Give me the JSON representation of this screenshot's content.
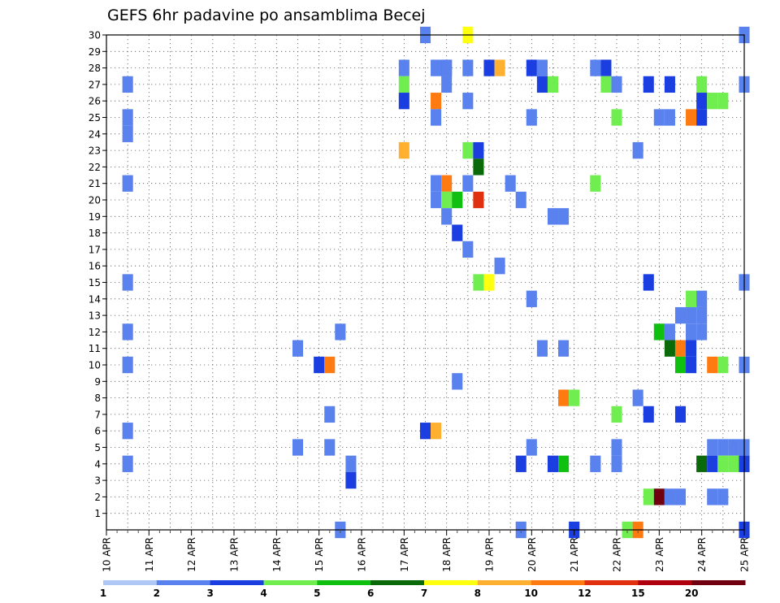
{
  "chart_data": {
    "type": "heatmap",
    "title": "GEFS 6hr padavine po ansamblima Becej",
    "xlabel": "",
    "ylabel": "",
    "x_ticks": [
      "10 APR",
      "11 APR",
      "12 APR",
      "13 APR",
      "14 APR",
      "15 APR",
      "16 APR",
      "17 APR",
      "18 APR",
      "19 APR",
      "20 APR",
      "21 APR",
      "22 APR",
      "23 APR",
      "24 APR",
      "25 APR"
    ],
    "y_ticks": [
      "1",
      "2",
      "3",
      "4",
      "5",
      "6",
      "7",
      "8",
      "9",
      "10",
      "11",
      "12",
      "13",
      "14",
      "15",
      "16",
      "17",
      "18",
      "19",
      "20",
      "21",
      "22",
      "23",
      "24",
      "25",
      "26",
      "27",
      "28",
      "29",
      "30"
    ],
    "y_range": [
      0,
      30
    ],
    "time_steps_per_day": 4,
    "time_steps": 61,
    "grid": "dotted",
    "colorbar": {
      "position": "bottom",
      "labels": [
        "1",
        "2",
        "3",
        "4",
        "5",
        "6",
        "7",
        "8",
        "10",
        "12",
        "15",
        "20"
      ],
      "colors": [
        "#b0c8f5",
        "#5a82ee",
        "#1a3ee0",
        "#70ee50",
        "#10c010",
        "#0a6a0a",
        "#ffff10",
        "#ffb030",
        "#ff7a10",
        "#e03010",
        "#b00010",
        "#700010"
      ]
    },
    "cells_comment_free": true,
    "cells": [
      [
        30,
        30,
        1
      ],
      [
        34,
        30,
        6
      ],
      [
        2,
        27,
        1
      ],
      [
        2,
        25,
        1
      ],
      [
        2,
        24,
        1
      ],
      [
        2,
        21,
        1
      ],
      [
        2,
        15,
        1
      ],
      [
        2,
        12,
        1
      ],
      [
        2,
        10,
        1
      ],
      [
        2,
        6,
        1
      ],
      [
        2,
        4,
        1
      ],
      [
        18,
        11,
        1
      ],
      [
        18,
        5,
        1
      ],
      [
        20,
        10,
        2
      ],
      [
        21,
        10,
        8
      ],
      [
        21,
        7,
        1
      ],
      [
        21,
        5,
        1
      ],
      [
        22,
        12,
        1
      ],
      [
        23,
        4,
        1
      ],
      [
        23,
        3,
        2
      ],
      [
        22,
        0,
        1
      ],
      [
        28,
        28,
        1
      ],
      [
        28,
        27,
        3
      ],
      [
        28,
        26,
        2
      ],
      [
        28,
        23,
        7
      ],
      [
        30,
        6,
        2
      ],
      [
        31,
        28,
        1
      ],
      [
        32,
        28,
        2
      ],
      [
        31,
        6,
        7
      ],
      [
        31,
        26,
        8
      ],
      [
        31,
        25,
        1
      ],
      [
        31,
        21,
        1
      ],
      [
        31,
        20,
        1
      ],
      [
        32,
        21,
        8
      ],
      [
        32,
        20,
        3
      ],
      [
        32,
        19,
        1
      ],
      [
        32,
        28,
        1
      ],
      [
        32,
        27,
        1
      ],
      [
        33,
        20,
        4
      ],
      [
        33,
        18,
        2
      ],
      [
        33,
        9,
        1
      ],
      [
        34,
        28,
        1
      ],
      [
        34,
        26,
        1
      ],
      [
        34,
        23,
        3
      ],
      [
        34,
        21,
        1
      ],
      [
        34,
        17,
        1
      ],
      [
        35,
        23,
        2
      ],
      [
        35,
        22,
        5
      ],
      [
        35,
        20,
        9
      ],
      [
        35,
        15,
        3
      ],
      [
        36,
        28,
        2
      ],
      [
        36,
        15,
        6
      ],
      [
        37,
        28,
        7
      ],
      [
        37,
        16,
        1
      ],
      [
        38,
        21,
        1
      ],
      [
        39,
        20,
        1
      ],
      [
        39,
        4,
        2
      ],
      [
        39,
        0,
        1
      ],
      [
        40,
        28,
        2
      ],
      [
        40,
        25,
        1
      ],
      [
        40,
        14,
        1
      ],
      [
        40,
        5,
        1
      ],
      [
        41,
        28,
        1
      ],
      [
        41,
        27,
        2
      ],
      [
        41,
        11,
        1
      ],
      [
        42,
        27,
        3
      ],
      [
        42,
        19,
        1
      ],
      [
        42,
        4,
        2
      ],
      [
        43,
        19,
        1
      ],
      [
        43,
        11,
        1
      ],
      [
        43,
        8,
        8
      ],
      [
        43,
        4,
        4
      ],
      [
        44,
        8,
        3
      ],
      [
        44,
        0,
        2
      ],
      [
        46,
        28,
        1
      ],
      [
        46,
        21,
        3
      ],
      [
        46,
        4,
        1
      ],
      [
        47,
        28,
        2
      ],
      [
        47,
        27,
        3
      ],
      [
        48,
        27,
        1
      ],
      [
        48,
        25,
        3
      ],
      [
        48,
        7,
        3
      ],
      [
        48,
        5,
        1
      ],
      [
        48,
        4,
        1
      ],
      [
        49,
        0,
        3
      ],
      [
        50,
        23,
        1
      ],
      [
        50,
        8,
        1
      ],
      [
        50,
        0,
        8
      ],
      [
        51,
        27,
        2
      ],
      [
        51,
        15,
        2
      ],
      [
        51,
        7,
        2
      ],
      [
        51,
        2,
        3
      ],
      [
        52,
        25,
        1
      ],
      [
        52,
        12,
        4
      ],
      [
        52,
        2,
        11
      ],
      [
        53,
        27,
        2
      ],
      [
        53,
        25,
        1
      ],
      [
        53,
        12,
        1
      ],
      [
        53,
        11,
        5
      ],
      [
        53,
        2,
        1
      ],
      [
        54,
        13,
        1
      ],
      [
        54,
        11,
        8
      ],
      [
        54,
        10,
        4
      ],
      [
        54,
        7,
        2
      ],
      [
        54,
        2,
        1
      ],
      [
        55,
        25,
        8
      ],
      [
        55,
        14,
        3
      ],
      [
        55,
        13,
        1
      ],
      [
        55,
        12,
        1
      ],
      [
        55,
        11,
        2
      ],
      [
        55,
        10,
        2
      ],
      [
        56,
        27,
        3
      ],
      [
        56,
        26,
        2
      ],
      [
        56,
        25,
        2
      ],
      [
        56,
        14,
        1
      ],
      [
        56,
        13,
        1
      ],
      [
        56,
        12,
        1
      ],
      [
        56,
        4,
        5
      ],
      [
        57,
        26,
        3
      ],
      [
        57,
        10,
        8
      ],
      [
        57,
        5,
        1
      ],
      [
        57,
        4,
        2
      ],
      [
        57,
        2,
        1
      ],
      [
        58,
        26,
        3
      ],
      [
        58,
        10,
        3
      ],
      [
        58,
        5,
        1
      ],
      [
        58,
        4,
        3
      ],
      [
        58,
        2,
        1
      ],
      [
        59,
        5,
        1
      ],
      [
        59,
        4,
        3
      ],
      [
        60,
        30,
        1
      ],
      [
        60,
        27,
        1
      ],
      [
        60,
        15,
        1
      ],
      [
        60,
        10,
        1
      ],
      [
        60,
        5,
        1
      ],
      [
        60,
        4,
        2
      ],
      [
        60,
        0,
        2
      ]
    ]
  }
}
